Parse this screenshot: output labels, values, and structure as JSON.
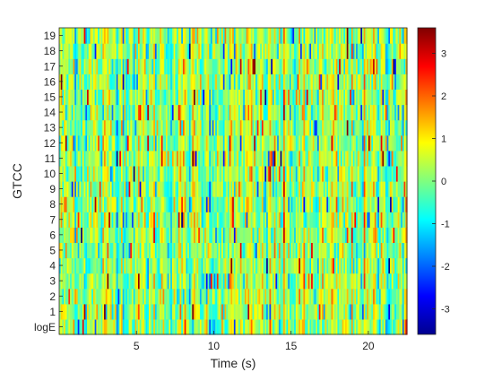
{
  "chart_data": {
    "type": "heatmap",
    "xlabel": "Time (s)",
    "ylabel": "GTCC",
    "xlim": [
      0,
      22.5
    ],
    "xticks": [
      5,
      10,
      15,
      20
    ],
    "xtick_labels": [
      "5",
      "10",
      "15",
      "20"
    ],
    "y_categories": [
      "logE",
      "1",
      "2",
      "3",
      "4",
      "5",
      "6",
      "7",
      "8",
      "9",
      "10",
      "11",
      "12",
      "13",
      "14",
      "15",
      "16",
      "17",
      "18",
      "19"
    ],
    "colormap": "jet",
    "clim": [
      -3.6,
      3.6
    ],
    "colorbar_ticks": [
      -3,
      -2,
      -1,
      0,
      1,
      2,
      3
    ],
    "colorbar_tick_labels": [
      "-3",
      "-2",
      "-1",
      "0",
      "1",
      "2",
      "3"
    ],
    "value_note": "Dense frame-by-frame GTCC coefficients; individual cell values are not legible and are approximated with a pseudo-random field centred near 0 (mostly green/cyan/yellow, occasional red and blue extremes).",
    "num_frames": 225
  }
}
